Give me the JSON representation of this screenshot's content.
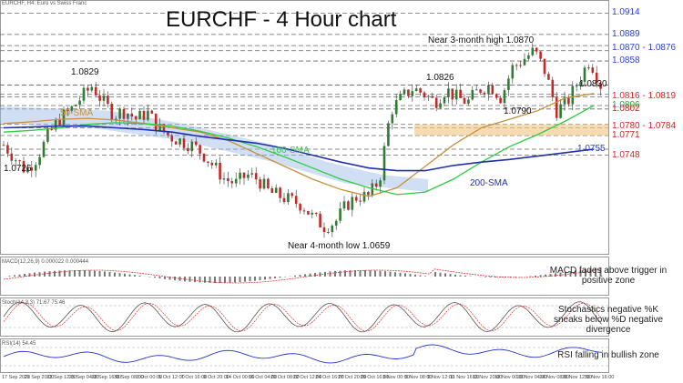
{
  "header": {
    "symbol_text": "EURCHF, H4: Euro vs Swiss Franc"
  },
  "title": "EURCHF - 4 Hour chart",
  "price_tags": [
    {
      "id": "p1",
      "text": "1.0914",
      "color": "blue",
      "boxed": false
    },
    {
      "id": "p2",
      "text": "1.0889",
      "color": "blue",
      "boxed": false
    },
    {
      "id": "p3",
      "text": "1.0870 - 1.0876",
      "color": "blue",
      "boxed": false
    },
    {
      "id": "p4",
      "text": "1.0858",
      "color": "blue",
      "boxed": false
    },
    {
      "id": "p5",
      "text": "1.0830",
      "color": "dark",
      "boxed": false
    },
    {
      "id": "p6",
      "text": "1.0816 - 1.0819",
      "color": "red",
      "boxed": false
    },
    {
      "id": "p7",
      "text": "1.0806",
      "color": "green",
      "boxed": false
    },
    {
      "id": "p8",
      "text": "1.0802",
      "color": "red",
      "boxed": false
    },
    {
      "id": "p9",
      "text": "1.0780 - 1.0784",
      "color": "red",
      "boxed": false
    },
    {
      "id": "p10",
      "text": "1.0771",
      "color": "red",
      "boxed": false
    },
    {
      "id": "p11",
      "text": "1.0755",
      "color": "blue",
      "boxed": false
    },
    {
      "id": "p12",
      "text": "1.0748",
      "color": "red",
      "boxed": false
    }
  ],
  "annotations": {
    "high_3m": "Near 3-month high 1.0870",
    "low_4m": "Near 4-month low 1.0659",
    "lvl_1829": "1.0829",
    "lvl_1726": "1.0726",
    "lvl_1826": "1.0826",
    "lvl_1790": "1.0790",
    "sma50": "50-SMA",
    "sma100": "100-SMA",
    "sma200": "200-SMA"
  },
  "indicators": {
    "macd": {
      "header": "MACD(12,26,9) 0.000022 0.000444",
      "note": "MACD fades above trigger in positive zone"
    },
    "stoch": {
      "header": "Stoch(14,3,3) 71.67 75.46",
      "note": "Stochastics negative %K sneaks below %D negative divergence"
    },
    "rsi": {
      "header": "RSI(14) 54.45",
      "note": "RSI falling in bullish zone"
    }
  },
  "x_ticks": [
    "17 Sep 2020",
    "21 Sep 20:00",
    "23 Sep 12:00",
    "25 Sep 04:00",
    "28 Sep 16:00",
    "30 Sep 08:00",
    "2 Oct 00:00",
    "5 Oct 12:00",
    "7 Oct 16:00",
    "9 Oct 20:00",
    "14 Oct 00:00",
    "16 Oct 04:00",
    "20 Oct 08:00",
    "22 Oct 12:00",
    "24 Oct 16:00",
    "27 Oct 20:00",
    "29 Oct 16:00",
    "3 Nov 00:00",
    "5 Nov 08:00",
    "9 Nov 12:00",
    "11 Nov 16:00",
    "13 Nov 20:00",
    "18 Nov 00:00",
    "20 Nov 04:00",
    "24 Nov 08:00",
    "26 Nov 12:00",
    "30 Nov 16:00"
  ],
  "colors": {
    "candle_up": "#2e7d32",
    "candle_down": "#c62828",
    "sma50": "#c8903c",
    "sma100": "#2ecc40",
    "sma200": "#1f2fb0",
    "ichimoku": "#33dd33",
    "cloud": "#9ab8e8",
    "zone": "#f2c98a"
  },
  "chart_data": {
    "type": "candlestick",
    "title": "EURCHF - 4 Hour chart",
    "ylim": [
      1.0635,
      1.0925
    ],
    "price_levels": [
      1.0914,
      1.0889,
      1.0876,
      1.087,
      1.0858,
      1.083,
      1.0819,
      1.0816,
      1.0806,
      1.0802,
      1.0784,
      1.078,
      1.0771,
      1.0755,
      1.0748
    ],
    "close_path": [
      1.076,
      1.0745,
      1.073,
      1.0745,
      1.077,
      1.079,
      1.08,
      1.0815,
      1.0829,
      1.081,
      1.0795,
      1.08,
      1.079,
      1.0798,
      1.078,
      1.077,
      1.0765,
      1.076,
      1.075,
      1.0735,
      1.072,
      1.0715,
      1.0725,
      1.072,
      1.0705,
      1.07,
      1.0695,
      1.069,
      1.0675,
      1.0665,
      1.067,
      1.069,
      1.07,
      1.07,
      1.072,
      1.08,
      1.0815,
      1.0826,
      1.082,
      1.081,
      1.0825,
      1.0815,
      1.081,
      1.0825,
      1.083,
      1.0815,
      1.085,
      1.086,
      1.087,
      1.0845,
      1.08,
      1.081,
      1.0835,
      1.086,
      1.083
    ],
    "series": [
      {
        "name": "50-SMA",
        "values": [
          1.0785,
          1.0787,
          1.079,
          1.0791,
          1.0789,
          1.0785,
          1.078,
          1.0775,
          1.0765,
          1.075,
          1.0735,
          1.072,
          1.0708,
          1.07,
          1.071,
          1.0735,
          1.076,
          1.078,
          1.079,
          1.08,
          1.0815,
          1.082
        ]
      },
      {
        "name": "100-SMA",
        "values": [
          1.0775,
          1.0777,
          1.078,
          1.0784,
          1.0786,
          1.0785,
          1.0782,
          1.0776,
          1.0768,
          1.0758,
          1.0746,
          1.0733,
          1.072,
          1.071,
          1.0702,
          1.0705,
          1.072,
          1.074,
          1.0758,
          1.0772,
          1.0788,
          1.0806
        ]
      },
      {
        "name": "200-SMA",
        "values": [
          1.078,
          1.0781,
          1.0782,
          1.0782,
          1.078,
          1.0778,
          1.0775,
          1.077,
          1.0766,
          1.0762,
          1.0756,
          1.0748,
          1.074,
          1.0733,
          1.073,
          1.073,
          1.0736,
          1.074,
          1.0743,
          1.0747,
          1.0751,
          1.0755
        ]
      }
    ]
  }
}
